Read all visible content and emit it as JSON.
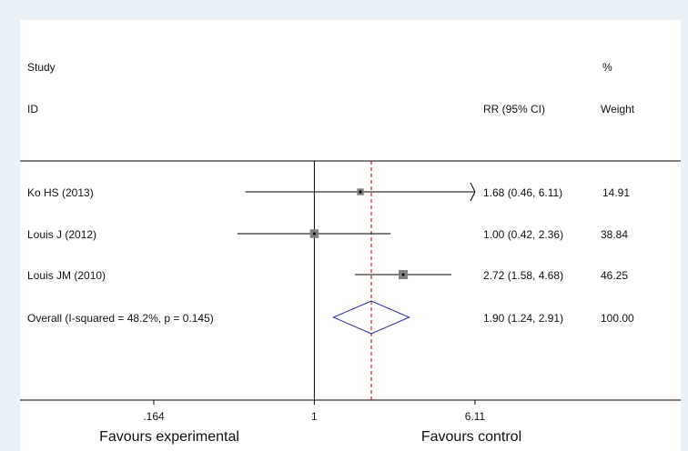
{
  "chart_data": {
    "type": "forest",
    "header": {
      "study_line1": "Study",
      "study_line2": "ID",
      "effect": "RR (95% CI)",
      "weight_line1": "%",
      "weight_line2": "Weight"
    },
    "studies": [
      {
        "label": "Ko HS (2013)",
        "rr": 1.68,
        "lo": 0.46,
        "hi": 6.11,
        "ci_text": "1.68 (0.46, 6.11)",
        "weight": 14.91,
        "weight_text": "14.91"
      },
      {
        "label": "Louis J (2012)",
        "rr": 1.0,
        "lo": 0.42,
        "hi": 2.36,
        "ci_text": "1.00 (0.42, 2.36)",
        "weight": 38.84,
        "weight_text": "38.84"
      },
      {
        "label": "Louis JM (2010)",
        "rr": 2.72,
        "lo": 1.58,
        "hi": 4.68,
        "ci_text": "2.72 (1.58, 4.68)",
        "weight": 46.25,
        "weight_text": "46.25"
      }
    ],
    "overall": {
      "label": "Overall  (I-squared = 48.2%, p = 0.145)",
      "rr": 1.9,
      "lo": 1.24,
      "hi": 2.91,
      "ci_text": "1.90 (1.24, 2.91)",
      "weight_text": "100.00"
    },
    "x_scale": "log",
    "x_ticks": [
      {
        "value": 0.164,
        "label": ".164"
      },
      {
        "value": 1,
        "label": "1"
      },
      {
        "value": 6.11,
        "label": "6.11"
      }
    ],
    "x_range": [
      0.164,
      6.11
    ],
    "null_value": 1,
    "favours_left": "Favours experimental",
    "favours_right": "Favours control",
    "colors": {
      "line": "#000000",
      "overall_line": "#c00000",
      "diamond": "#2a2aa8",
      "box": "#808080"
    }
  }
}
